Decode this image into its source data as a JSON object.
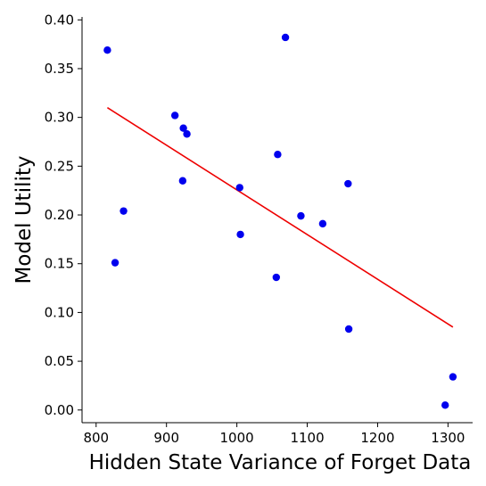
{
  "chart_data": {
    "type": "scatter",
    "title": "",
    "xlabel": "Hidden State Variance of Forget Data",
    "ylabel": "Model Utility",
    "xlim": [
      780,
      1335
    ],
    "ylim": [
      -0.013,
      0.403
    ],
    "xticks": [
      800,
      900,
      1000,
      1100,
      1200,
      1300
    ],
    "xtick_labels": [
      "800",
      "900",
      "1000",
      "1100",
      "1200",
      "1300"
    ],
    "yticks": [
      0.0,
      0.05,
      0.1,
      0.15,
      0.2,
      0.25,
      0.3,
      0.35,
      0.4
    ],
    "ytick_labels": [
      "0.00",
      "0.05",
      "0.10",
      "0.15",
      "0.20",
      "0.25",
      "0.30",
      "0.35",
      "0.40"
    ],
    "grid": false,
    "legend": "none",
    "point_color": "#0000ee",
    "fit_line_color": "#ee0000",
    "points": [
      {
        "x": 816,
        "y": 0.369
      },
      {
        "x": 827,
        "y": 0.151
      },
      {
        "x": 839,
        "y": 0.204
      },
      {
        "x": 912,
        "y": 0.302
      },
      {
        "x": 923,
        "y": 0.235
      },
      {
        "x": 924,
        "y": 0.289
      },
      {
        "x": 929,
        "y": 0.283
      },
      {
        "x": 1004,
        "y": 0.228
      },
      {
        "x": 1005,
        "y": 0.18
      },
      {
        "x": 1056,
        "y": 0.136
      },
      {
        "x": 1058,
        "y": 0.262
      },
      {
        "x": 1069,
        "y": 0.382
      },
      {
        "x": 1091,
        "y": 0.199
      },
      {
        "x": 1122,
        "y": 0.191
      },
      {
        "x": 1158,
        "y": 0.232
      },
      {
        "x": 1159,
        "y": 0.083
      },
      {
        "x": 1296,
        "y": 0.005
      },
      {
        "x": 1307,
        "y": 0.034
      }
    ],
    "fit_line": {
      "x": [
        816,
        1307
      ],
      "y": [
        0.31,
        0.085
      ]
    }
  }
}
